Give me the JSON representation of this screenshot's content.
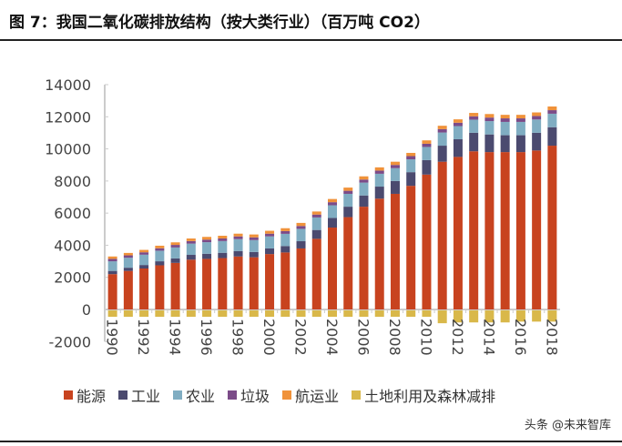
{
  "title": "图 7：我国二氧化碳排放结构（按大类行业）（百万吨 CO2）",
  "watermark": "头条 @未来智库",
  "chart_data": {
    "type": "bar",
    "stacked": true,
    "categories": [
      1990,
      1991,
      1992,
      1993,
      1994,
      1995,
      1996,
      1997,
      1998,
      1999,
      2000,
      2001,
      2002,
      2003,
      2004,
      2005,
      2006,
      2007,
      2008,
      2009,
      2010,
      2011,
      2012,
      2013,
      2014,
      2015,
      2016,
      2017,
      2018
    ],
    "x_tick_labels": [
      "1990",
      "1992",
      "1994",
      "1996",
      "1998",
      "2000",
      "2002",
      "2004",
      "2006",
      "2008",
      "2010",
      "2012",
      "2014",
      "2016",
      "2018"
    ],
    "ylim": [
      -2000,
      14000
    ],
    "y_ticks": [
      14000,
      12000,
      10000,
      8000,
      6000,
      4000,
      2000,
      0,
      -2000
    ],
    "grid": false,
    "legend": "bottom",
    "series": [
      {
        "name": "能源",
        "color": "#c8431f",
        "values": [
          2200,
          2400,
          2550,
          2750,
          2900,
          3100,
          3150,
          3200,
          3300,
          3250,
          3450,
          3550,
          3800,
          4400,
          5100,
          5750,
          6400,
          6900,
          7200,
          7700,
          8400,
          9200,
          9500,
          9850,
          9800,
          9800,
          9800,
          9900,
          10200
        ]
      },
      {
        "name": "工业",
        "color": "#4b4a6f",
        "values": [
          200,
          200,
          220,
          250,
          280,
          300,
          320,
          330,
          340,
          330,
          350,
          400,
          450,
          550,
          600,
          650,
          700,
          750,
          800,
          850,
          900,
          1000,
          1100,
          1150,
          1100,
          1050,
          1050,
          1100,
          1150
        ]
      },
      {
        "name": "农业",
        "color": "#80adc2",
        "values": [
          600,
          620,
          640,
          660,
          680,
          700,
          720,
          730,
          740,
          740,
          750,
          760,
          770,
          780,
          790,
          800,
          800,
          800,
          800,
          800,
          820,
          820,
          820,
          820,
          830,
          830,
          830,
          830,
          840
        ]
      },
      {
        "name": "垃圾",
        "color": "#7b4b88",
        "values": [
          150,
          150,
          150,
          150,
          160,
          160,
          160,
          160,
          170,
          170,
          170,
          170,
          180,
          180,
          190,
          190,
          190,
          200,
          200,
          200,
          200,
          210,
          210,
          210,
          220,
          220,
          220,
          220,
          220
        ]
      },
      {
        "name": "航运业",
        "color": "#f0923a",
        "values": [
          150,
          150,
          150,
          160,
          160,
          160,
          170,
          170,
          170,
          180,
          180,
          180,
          190,
          190,
          200,
          200,
          200,
          200,
          200,
          200,
          210,
          210,
          210,
          210,
          220,
          220,
          220,
          220,
          230
        ]
      },
      {
        "name": "土地利用及森林减排",
        "color": "#d9b84a",
        "values": [
          -400,
          -400,
          -400,
          -400,
          -400,
          -400,
          -400,
          -400,
          -400,
          -400,
          -400,
          -400,
          -400,
          -400,
          -400,
          -400,
          -400,
          -400,
          -400,
          -400,
          -400,
          -800,
          -750,
          -750,
          -750,
          -750,
          -700,
          -700,
          -700
        ]
      }
    ]
  }
}
